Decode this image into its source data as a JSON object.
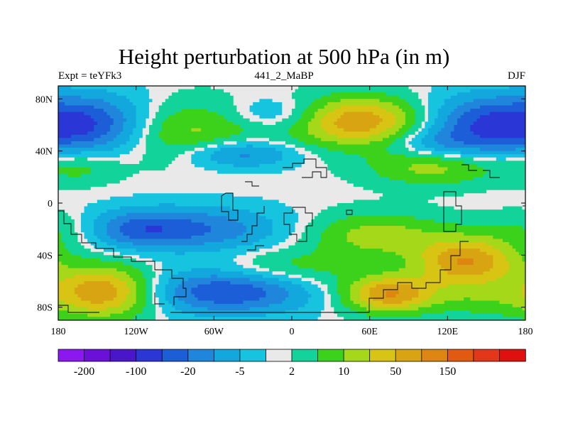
{
  "chart_data": {
    "type": "heatmap",
    "title": "Height perturbation at 500 hPa (in m)",
    "subtitle_left": "Expt = teYFk3",
    "subtitle_center": "441_2_MaBP",
    "subtitle_right": "DJF",
    "x_ticks": [
      {
        "value": -180,
        "label": "180"
      },
      {
        "value": -120,
        "label": "120W"
      },
      {
        "value": -60,
        "label": "60W"
      },
      {
        "value": 0,
        "label": "0"
      },
      {
        "value": 60,
        "label": "60E"
      },
      {
        "value": 120,
        "label": "120E"
      },
      {
        "value": 180,
        "label": "180"
      }
    ],
    "y_ticks": [
      {
        "value": 80,
        "label": "80N"
      },
      {
        "value": 40,
        "label": "40N"
      },
      {
        "value": 0,
        "label": "0"
      },
      {
        "value": -40,
        "label": "40S"
      },
      {
        "value": -80,
        "label": "80S"
      }
    ],
    "xlim": [
      -180,
      180
    ],
    "ylim": [
      -90,
      90
    ],
    "colorbar": {
      "colors": [
        "#8b18f0",
        "#6a10d8",
        "#4a16cc",
        "#2a36d6",
        "#1c5ed8",
        "#1f86dc",
        "#12a8de",
        "#16c4e0",
        "#e9e9e9",
        "#12d49a",
        "#3cd21c",
        "#a4d818",
        "#d8c412",
        "#d8a412",
        "#de8612",
        "#e25a12",
        "#e4361a",
        "#e01010"
      ],
      "labels": [
        {
          "boundary": 1,
          "text": "-200"
        },
        {
          "boundary": 3,
          "text": "-100"
        },
        {
          "boundary": 5,
          "text": "-20"
        },
        {
          "boundary": 7,
          "text": "-5"
        },
        {
          "boundary": 9,
          "text": "2"
        },
        {
          "boundary": 11,
          "text": "10"
        },
        {
          "boundary": 13,
          "text": "50"
        },
        {
          "boundary": 15,
          "text": "150"
        }
      ]
    },
    "anomaly_centers": [
      {
        "lon": -150,
        "lat": 60,
        "value": -40,
        "sx": 32,
        "sy": 16
      },
      {
        "lon": -10,
        "lat": 67,
        "value": -20,
        "sx": 30,
        "sy": 10
      },
      {
        "lon": 150,
        "lat": 60,
        "value": -40,
        "sx": 34,
        "sy": 16
      },
      {
        "lon": -40,
        "lat": 38,
        "value": -30,
        "sx": 30,
        "sy": 8
      },
      {
        "lon": -75,
        "lat": -20,
        "value": -30,
        "sx": 45,
        "sy": 12
      },
      {
        "lon": -120,
        "lat": -20,
        "value": -20,
        "sx": 25,
        "sy": 10
      },
      {
        "lon": -50,
        "lat": -68,
        "value": -40,
        "sx": 45,
        "sy": 12
      },
      {
        "lon": 110,
        "lat": 45,
        "value": -15,
        "sx": 25,
        "sy": 8
      },
      {
        "lon": 50,
        "lat": 63,
        "value": 50,
        "sx": 35,
        "sy": 13
      },
      {
        "lon": -80,
        "lat": 55,
        "value": 25,
        "sx": 50,
        "sy": 16
      },
      {
        "lon": 110,
        "lat": 28,
        "value": 25,
        "sx": 35,
        "sy": 10
      },
      {
        "lon": -165,
        "lat": 28,
        "value": 15,
        "sx": 22,
        "sy": 9
      },
      {
        "lon": -145,
        "lat": -68,
        "value": 50,
        "sx": 28,
        "sy": 14
      },
      {
        "lon": 135,
        "lat": -45,
        "value": 50,
        "sx": 28,
        "sy": 14
      },
      {
        "lon": 75,
        "lat": -70,
        "value": 50,
        "sx": 25,
        "sy": 10
      },
      {
        "lon": 65,
        "lat": -25,
        "value": 25,
        "sx": 35,
        "sy": 12
      },
      {
        "lon": 0,
        "lat": -50,
        "value": 15,
        "sx": 40,
        "sy": 10
      },
      {
        "lon": 150,
        "lat": -75,
        "value": 12,
        "sx": 30,
        "sy": 10
      },
      {
        "lon": 180,
        "lat": -20,
        "value": 10,
        "sx": 20,
        "sy": 10
      }
    ]
  }
}
